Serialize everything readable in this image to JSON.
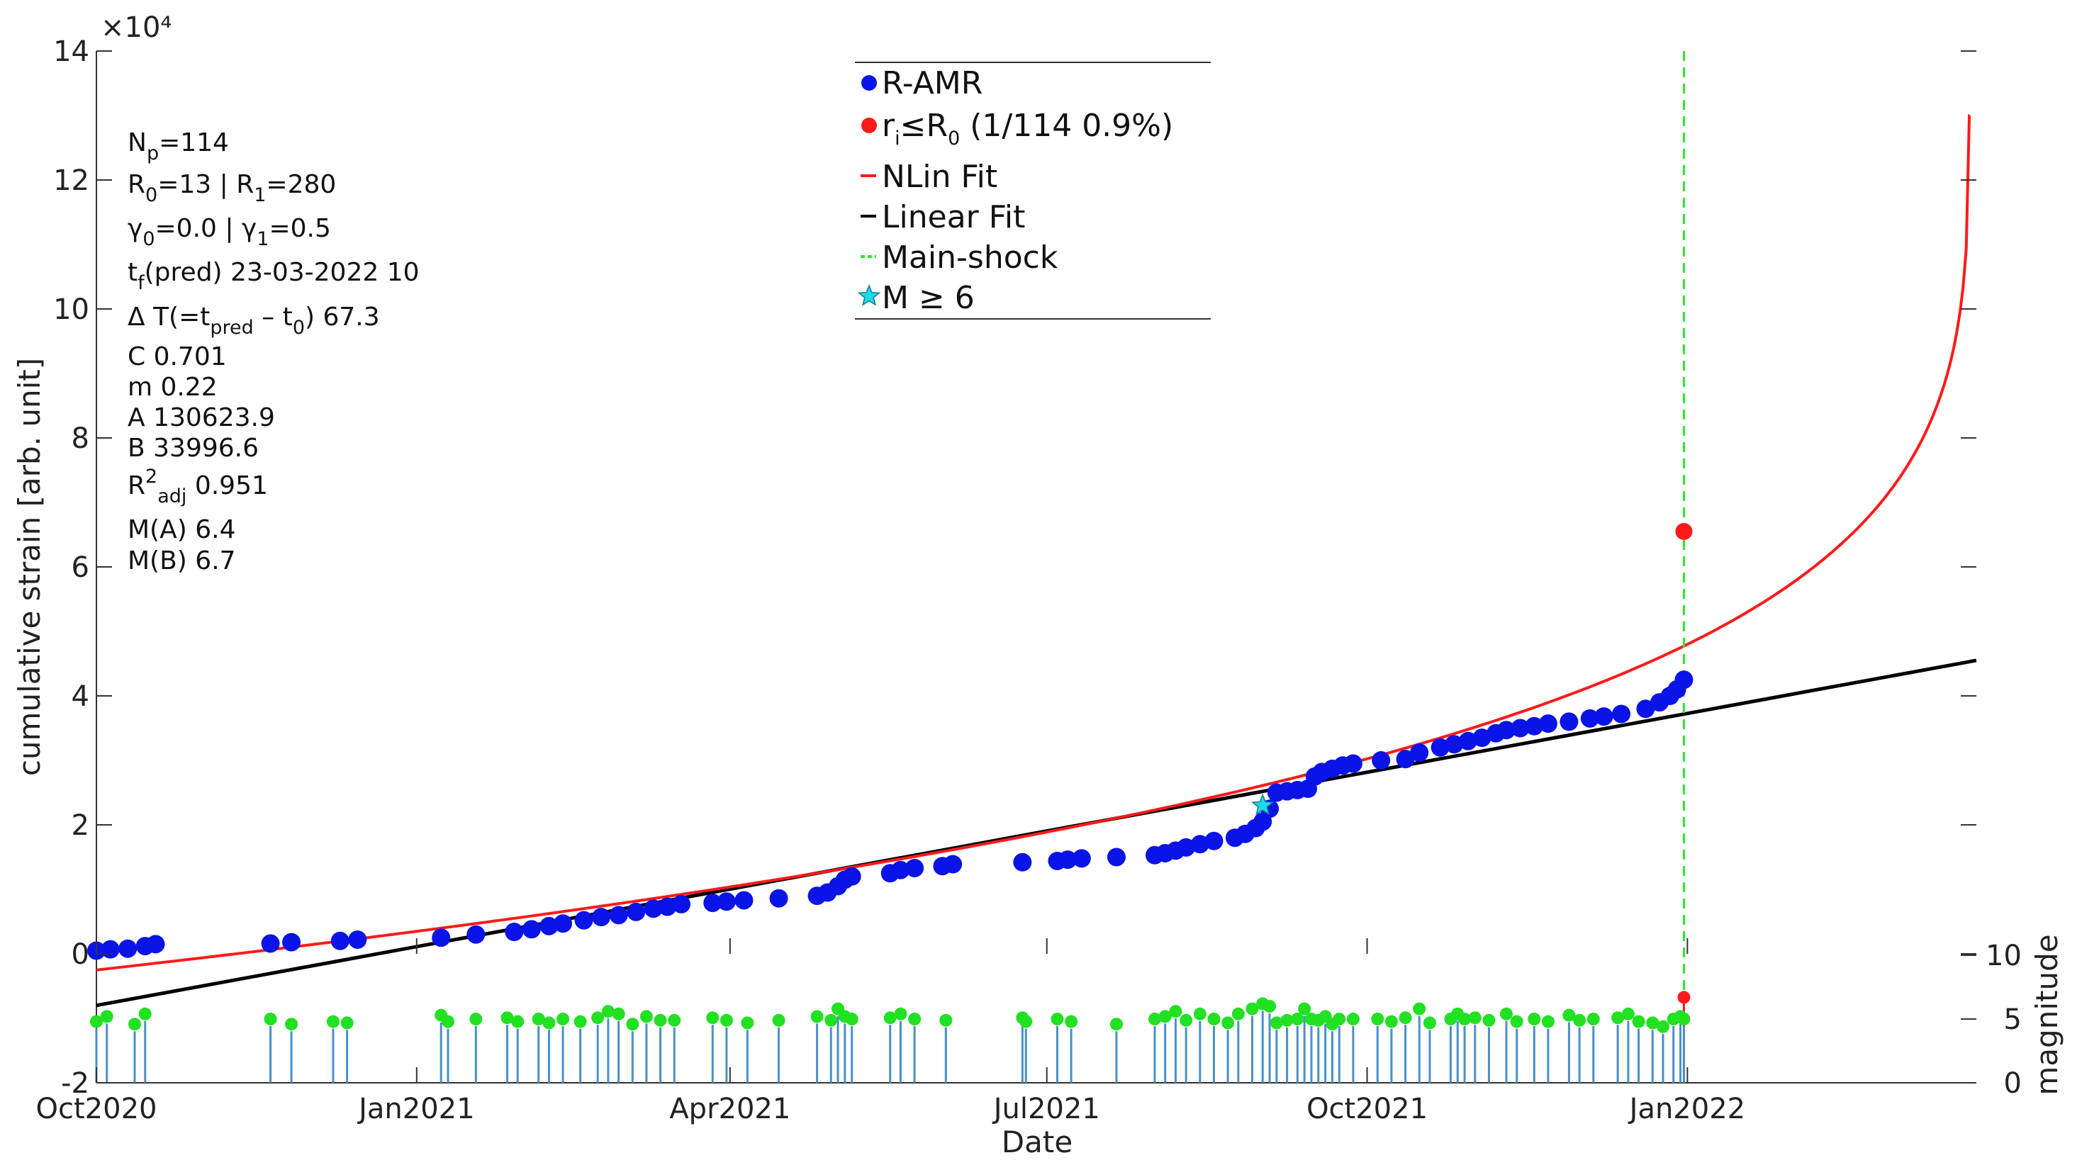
{
  "chart_data": {
    "type": "scatter",
    "xlabel": "Date",
    "ylabel": "cumulative strain [arb. unit]",
    "y2label": "magnitude",
    "exponent_label": "×10⁴",
    "x_range": [
      "2020-10-01",
      "2022-03-25"
    ],
    "ylim": [
      -20000,
      140000
    ],
    "yticks": [
      {
        "value": -20000,
        "label": "-2"
      },
      {
        "value": 0,
        "label": "0"
      },
      {
        "value": 20000,
        "label": "2"
      },
      {
        "value": 40000,
        "label": "4"
      },
      {
        "value": 60000,
        "label": "6"
      },
      {
        "value": 80000,
        "label": "8"
      },
      {
        "value": 100000,
        "label": "10"
      },
      {
        "value": 120000,
        "label": "12"
      },
      {
        "value": 140000,
        "label": "14"
      }
    ],
    "y2lim": [
      0,
      10
    ],
    "y2ticks": [
      {
        "value": 0,
        "label": "0"
      },
      {
        "value": 5,
        "label": "5"
      },
      {
        "value": 10,
        "label": "10"
      }
    ],
    "xticks": [
      {
        "date": "2020-10-01",
        "label": "Oct2020"
      },
      {
        "date": "2021-01-01",
        "label": "Jan2021"
      },
      {
        "date": "2021-04-01",
        "label": "Apr2021"
      },
      {
        "date": "2021-07-01",
        "label": "Jul2021"
      },
      {
        "date": "2021-10-01",
        "label": "Oct2021"
      },
      {
        "date": "2022-01-01",
        "label": "Jan2022"
      }
    ],
    "grid": false,
    "legend_position": "top-center",
    "stats": [
      {
        "main": "N",
        "sub": "p",
        "rest": "=114"
      },
      {
        "main": "R",
        "sub": "0",
        "rest": "=13 | R",
        "sub2": "1",
        "rest2": "=280"
      },
      {
        "main": "γ",
        "sub": "0",
        "rest": "=0.0 | γ",
        "sub2": "1",
        "rest2": "=0.5"
      },
      {
        "main": "t",
        "sub": "f",
        "rest": "(pred) 23-03-2022 10"
      },
      {
        "main": "Δ T(=t",
        "sub": "pred",
        "rest": " – t",
        "sub2": "0",
        "rest2": ")  67.3"
      },
      {
        "main": "C  0.701"
      },
      {
        "main": "m  0.22"
      },
      {
        "main": "A  130623.9"
      },
      {
        "main": "B  33996.6"
      },
      {
        "main": "R",
        "sup": "2",
        "sub": "adj",
        "rest": " 0.951"
      },
      {
        "main": "M(A)  6.4"
      },
      {
        "main": "M(B)  6.7"
      }
    ],
    "legend": [
      {
        "key": "ramr",
        "label": "R-AMR"
      },
      {
        "key": "ri",
        "label_main": "r",
        "label_sub": "i",
        "label_mid": "≤R",
        "label_sub2": "0",
        "label_rest": " (1/114 0.9%)"
      },
      {
        "key": "nlin",
        "label": "NLin Fit"
      },
      {
        "key": "lin",
        "label": "Linear Fit"
      },
      {
        "key": "main",
        "label": "Main-shock"
      },
      {
        "key": "m6",
        "label": "M ≥ 6"
      }
    ],
    "colors": {
      "ramr": "#0a14e6",
      "red": "#ff1a1a",
      "nlin": "#ff1a1a",
      "lin": "#000000",
      "mainshock": "#2ee82e",
      "star": "#1fd9e6",
      "mag_points": "#22e022",
      "mag_stems": "#4a90c8",
      "axis": "#333333"
    },
    "mainshock_date": "2021-12-31",
    "red_point": {
      "date": "2021-12-31",
      "y": 65500,
      "mag": 6.7
    },
    "star_point": {
      "date": "2021-09-01",
      "y": 23000
    },
    "linear_fit": {
      "x": [
        "2020-10-01",
        "2022-03-25"
      ],
      "y": [
        -8000,
        45500
      ]
    },
    "nonlinear_fit": {
      "tf": "2022-03-23",
      "A": 130623.9,
      "B": 33996.6,
      "m": 0.22,
      "y_start": -2500,
      "y_end": 130000
    },
    "series": [
      {
        "name": "R-AMR",
        "points": [
          [
            "2020-10-01",
            500
          ],
          [
            "2020-10-05",
            700
          ],
          [
            "2020-10-10",
            800
          ],
          [
            "2020-10-15",
            1200
          ],
          [
            "2020-10-18",
            1500
          ],
          [
            "2020-11-20",
            1600
          ],
          [
            "2020-11-26",
            1800
          ],
          [
            "2020-12-10",
            2000
          ],
          [
            "2020-12-15",
            2200
          ],
          [
            "2021-01-08",
            2500
          ],
          [
            "2021-01-18",
            3000
          ],
          [
            "2021-01-29",
            3400
          ],
          [
            "2021-02-03",
            3800
          ],
          [
            "2021-02-08",
            4300
          ],
          [
            "2021-02-12",
            4700
          ],
          [
            "2021-02-18",
            5200
          ],
          [
            "2021-02-23",
            5700
          ],
          [
            "2021-02-28",
            6000
          ],
          [
            "2021-03-05",
            6500
          ],
          [
            "2021-03-10",
            7000
          ],
          [
            "2021-03-14",
            7300
          ],
          [
            "2021-03-18",
            7700
          ],
          [
            "2021-03-27",
            7900
          ],
          [
            "2021-03-31",
            8100
          ],
          [
            "2021-04-05",
            8300
          ],
          [
            "2021-04-15",
            8600
          ],
          [
            "2021-04-26",
            9000
          ],
          [
            "2021-04-29",
            9500
          ],
          [
            "2021-05-02",
            10500
          ],
          [
            "2021-05-04",
            11500
          ],
          [
            "2021-05-06",
            12000
          ],
          [
            "2021-05-17",
            12500
          ],
          [
            "2021-05-20",
            13000
          ],
          [
            "2021-05-24",
            13300
          ],
          [
            "2021-06-01",
            13600
          ],
          [
            "2021-06-04",
            13900
          ],
          [
            "2021-06-24",
            14200
          ],
          [
            "2021-07-04",
            14400
          ],
          [
            "2021-07-07",
            14600
          ],
          [
            "2021-07-11",
            14800
          ],
          [
            "2021-07-21",
            15000
          ],
          [
            "2021-08-01",
            15300
          ],
          [
            "2021-08-04",
            15600
          ],
          [
            "2021-08-07",
            16000
          ],
          [
            "2021-08-10",
            16500
          ],
          [
            "2021-08-14",
            17000
          ],
          [
            "2021-08-18",
            17500
          ],
          [
            "2021-08-24",
            18000
          ],
          [
            "2021-08-27",
            18600
          ],
          [
            "2021-08-30",
            19500
          ],
          [
            "2021-09-01",
            20500
          ],
          [
            "2021-09-03",
            22500
          ],
          [
            "2021-09-05",
            25000
          ],
          [
            "2021-09-08",
            25200
          ],
          [
            "2021-09-11",
            25400
          ],
          [
            "2021-09-14",
            25600
          ],
          [
            "2021-09-16",
            27500
          ],
          [
            "2021-09-18",
            28200
          ],
          [
            "2021-09-21",
            28700
          ],
          [
            "2021-09-24",
            29200
          ],
          [
            "2021-09-27",
            29500
          ],
          [
            "2021-10-05",
            30000
          ],
          [
            "2021-10-12",
            30200
          ],
          [
            "2021-10-16",
            31200
          ],
          [
            "2021-10-22",
            32000
          ],
          [
            "2021-10-26",
            32500
          ],
          [
            "2021-10-30",
            33000
          ],
          [
            "2021-11-03",
            33500
          ],
          [
            "2021-11-07",
            34200
          ],
          [
            "2021-11-10",
            34700
          ],
          [
            "2021-11-14",
            35000
          ],
          [
            "2021-11-18",
            35300
          ],
          [
            "2021-11-22",
            35700
          ],
          [
            "2021-11-28",
            36000
          ],
          [
            "2021-12-04",
            36500
          ],
          [
            "2021-12-08",
            36800
          ],
          [
            "2021-12-13",
            37200
          ],
          [
            "2021-12-20",
            38000
          ],
          [
            "2021-12-24",
            39000
          ],
          [
            "2021-12-27",
            40000
          ],
          [
            "2021-12-29",
            41000
          ],
          [
            "2021-12-31",
            42500
          ]
        ]
      },
      {
        "name": "magnitude",
        "points": [
          [
            "2020-10-01",
            4.8
          ],
          [
            "2020-10-04",
            5.2
          ],
          [
            "2020-10-12",
            4.6
          ],
          [
            "2020-10-15",
            5.4
          ],
          [
            "2020-11-20",
            5.0
          ],
          [
            "2020-11-26",
            4.6
          ],
          [
            "2020-12-08",
            4.8
          ],
          [
            "2020-12-12",
            4.7
          ],
          [
            "2021-01-08",
            5.3
          ],
          [
            "2021-01-10",
            4.8
          ],
          [
            "2021-01-18",
            5.0
          ],
          [
            "2021-01-27",
            5.1
          ],
          [
            "2021-01-30",
            4.8
          ],
          [
            "2021-02-05",
            5.0
          ],
          [
            "2021-02-08",
            4.7
          ],
          [
            "2021-02-12",
            5.0
          ],
          [
            "2021-02-17",
            4.8
          ],
          [
            "2021-02-22",
            5.1
          ],
          [
            "2021-02-25",
            5.6
          ],
          [
            "2021-02-28",
            5.4
          ],
          [
            "2021-03-04",
            4.6
          ],
          [
            "2021-03-08",
            5.2
          ],
          [
            "2021-03-12",
            4.9
          ],
          [
            "2021-03-16",
            4.9
          ],
          [
            "2021-03-27",
            5.1
          ],
          [
            "2021-03-31",
            4.9
          ],
          [
            "2021-04-06",
            4.7
          ],
          [
            "2021-04-15",
            4.9
          ],
          [
            "2021-04-26",
            5.2
          ],
          [
            "2021-04-30",
            4.9
          ],
          [
            "2021-05-02",
            5.8
          ],
          [
            "2021-05-04",
            5.2
          ],
          [
            "2021-05-06",
            5.0
          ],
          [
            "2021-05-17",
            5.1
          ],
          [
            "2021-05-20",
            5.4
          ],
          [
            "2021-05-24",
            5.0
          ],
          [
            "2021-06-02",
            4.9
          ],
          [
            "2021-06-24",
            5.1
          ],
          [
            "2021-06-25",
            4.8
          ],
          [
            "2021-07-04",
            5.0
          ],
          [
            "2021-07-08",
            4.8
          ],
          [
            "2021-07-21",
            4.6
          ],
          [
            "2021-08-01",
            5.0
          ],
          [
            "2021-08-04",
            5.2
          ],
          [
            "2021-08-07",
            5.6
          ],
          [
            "2021-08-10",
            4.9
          ],
          [
            "2021-08-14",
            5.4
          ],
          [
            "2021-08-18",
            5.0
          ],
          [
            "2021-08-22",
            4.7
          ],
          [
            "2021-08-25",
            5.4
          ],
          [
            "2021-08-29",
            5.8
          ],
          [
            "2021-09-01",
            6.2
          ],
          [
            "2021-09-03",
            6.0
          ],
          [
            "2021-09-05",
            4.7
          ],
          [
            "2021-09-08",
            4.9
          ],
          [
            "2021-09-11",
            5.0
          ],
          [
            "2021-09-13",
            5.8
          ],
          [
            "2021-09-15",
            5.0
          ],
          [
            "2021-09-17",
            4.9
          ],
          [
            "2021-09-19",
            5.2
          ],
          [
            "2021-09-21",
            4.6
          ],
          [
            "2021-09-23",
            5.0
          ],
          [
            "2021-09-27",
            5.0
          ],
          [
            "2021-10-04",
            5.0
          ],
          [
            "2021-10-08",
            4.8
          ],
          [
            "2021-10-12",
            5.1
          ],
          [
            "2021-10-16",
            5.8
          ],
          [
            "2021-10-19",
            4.7
          ],
          [
            "2021-10-25",
            5.0
          ],
          [
            "2021-10-27",
            5.4
          ],
          [
            "2021-10-29",
            5.0
          ],
          [
            "2021-11-01",
            5.1
          ],
          [
            "2021-11-05",
            4.9
          ],
          [
            "2021-11-10",
            5.4
          ],
          [
            "2021-11-13",
            4.8
          ],
          [
            "2021-11-18",
            5.0
          ],
          [
            "2021-11-22",
            4.8
          ],
          [
            "2021-11-28",
            5.3
          ],
          [
            "2021-12-01",
            4.9
          ],
          [
            "2021-12-05",
            5.0
          ],
          [
            "2021-12-12",
            5.1
          ],
          [
            "2021-12-15",
            5.4
          ],
          [
            "2021-12-18",
            4.8
          ],
          [
            "2021-12-22",
            4.7
          ],
          [
            "2021-12-25",
            4.4
          ],
          [
            "2021-12-28",
            5.0
          ],
          [
            "2021-12-30",
            5.2
          ],
          [
            "2021-12-31",
            5.0
          ]
        ]
      }
    ]
  }
}
